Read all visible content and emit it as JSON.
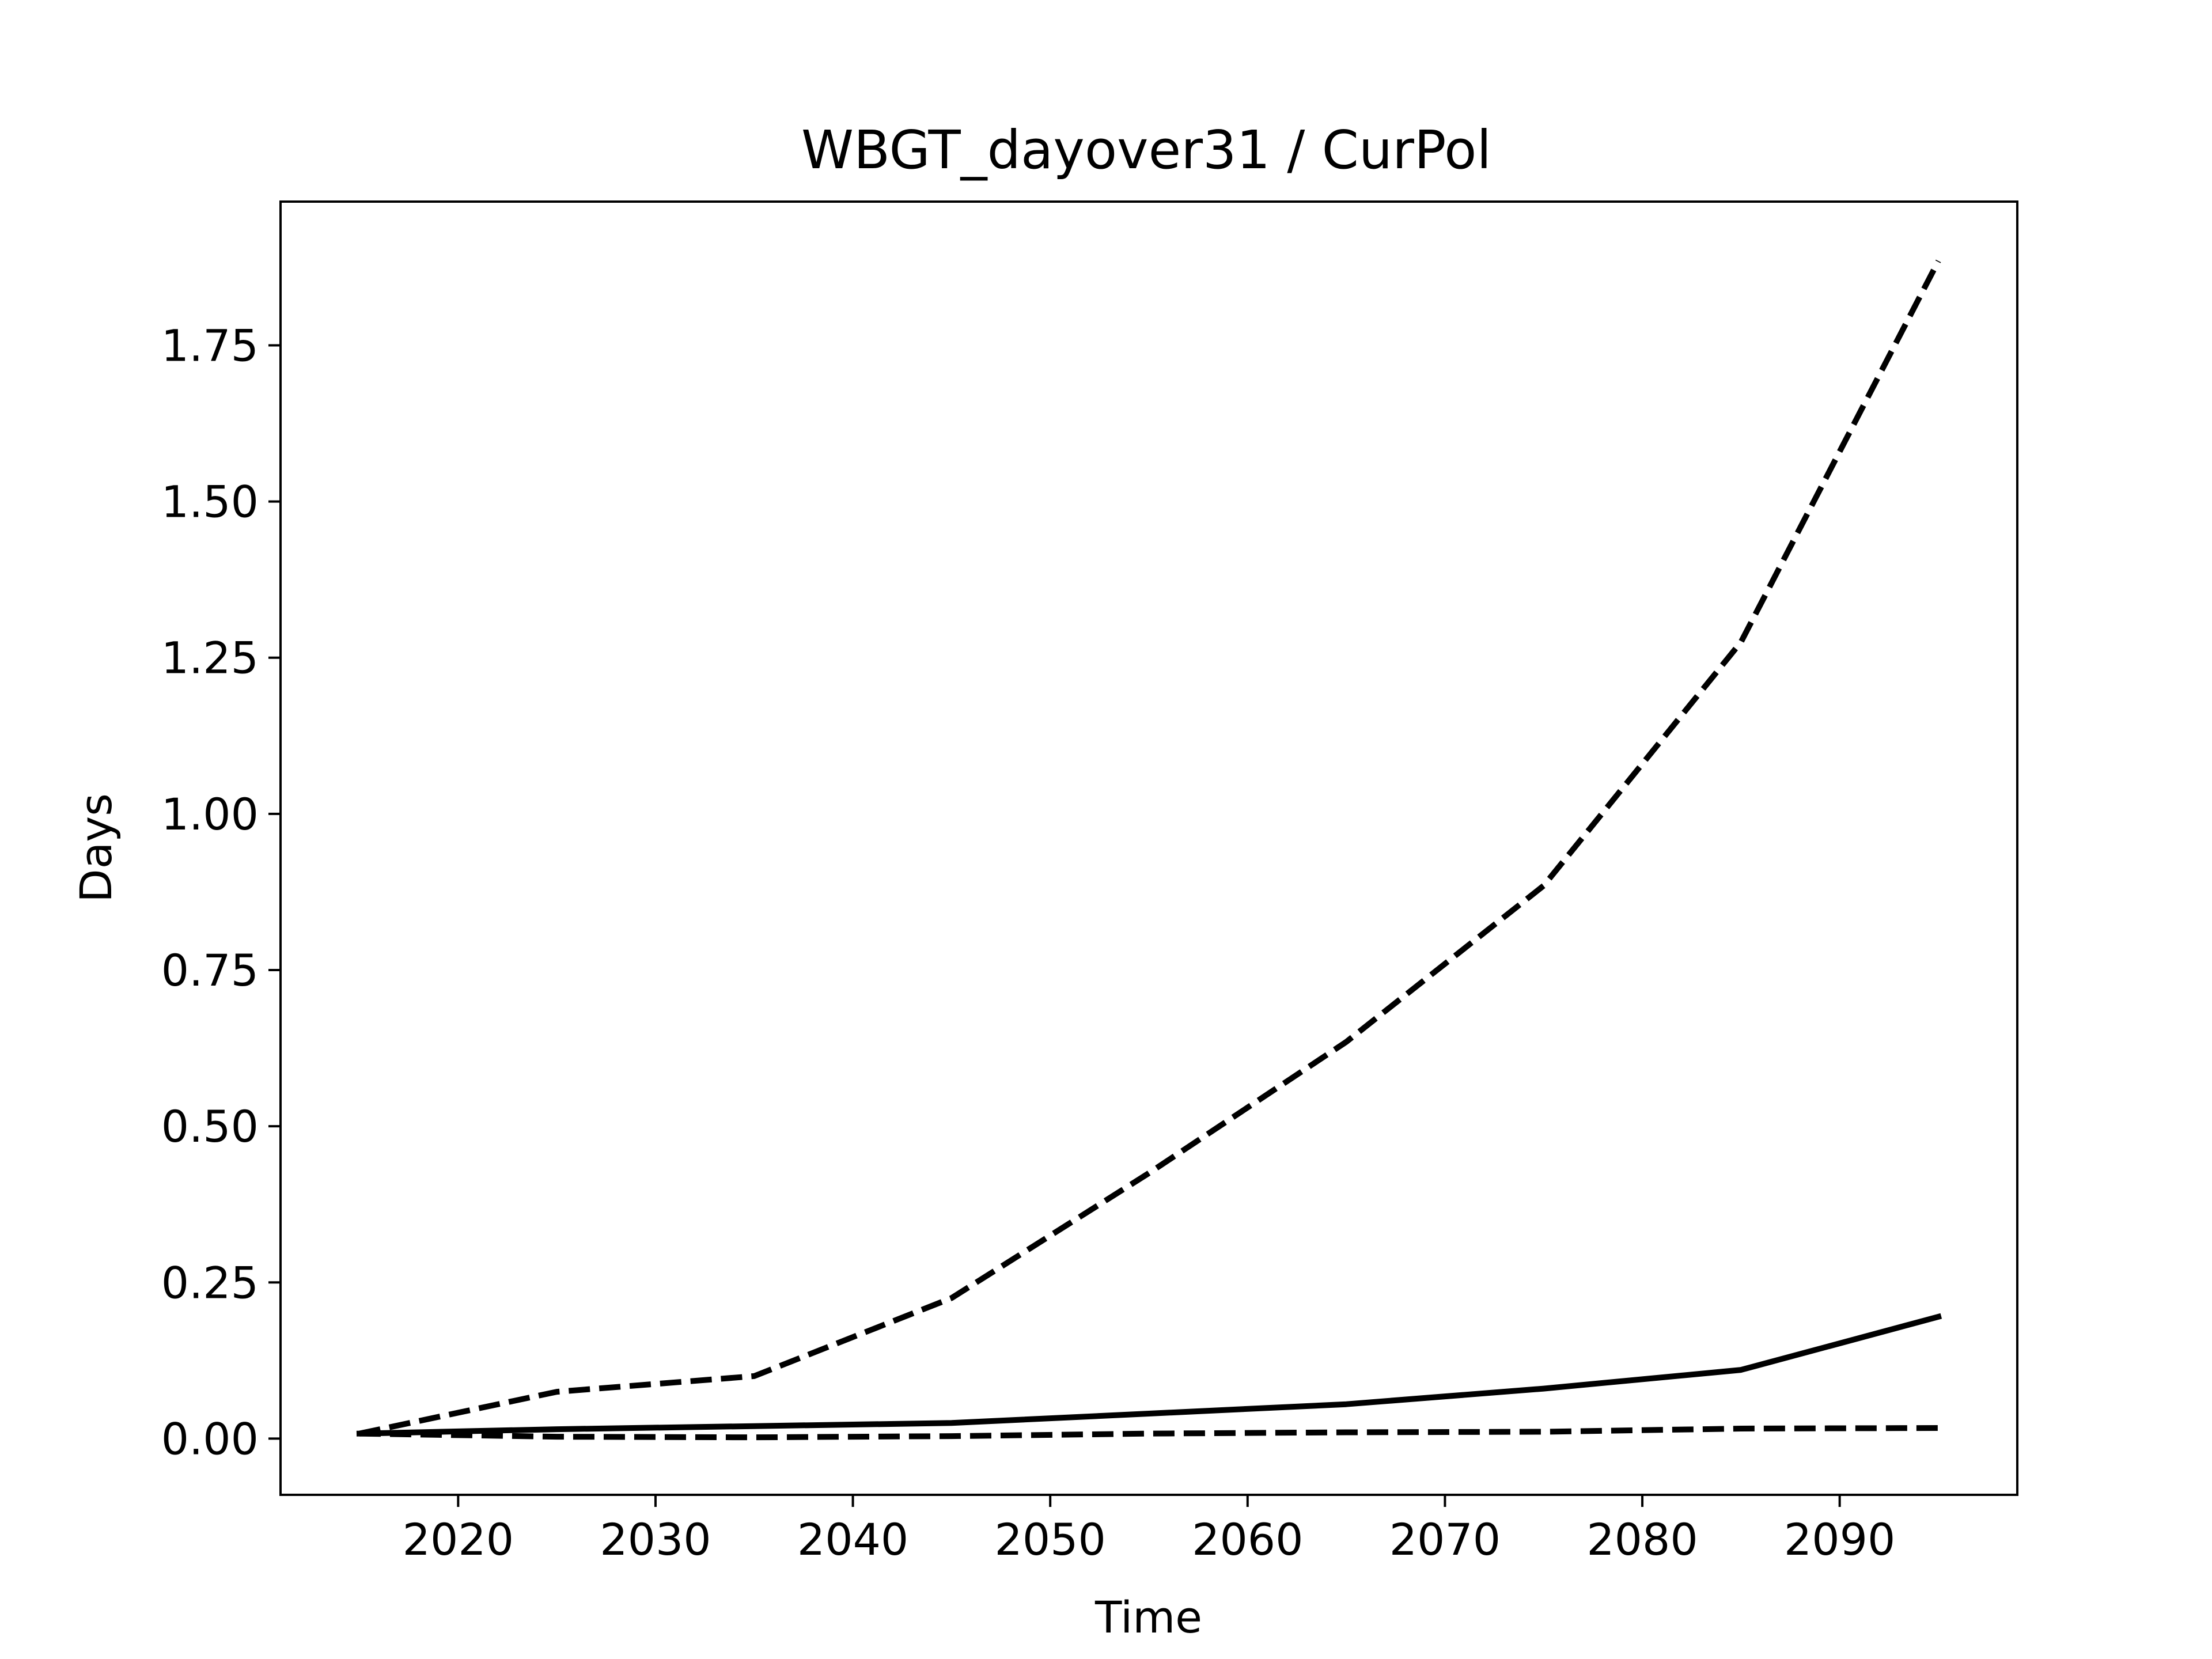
{
  "chart_data": {
    "type": "line",
    "title": "WBGT_dayover31 / CurPol",
    "xlabel": "Time",
    "ylabel": "Days",
    "xlim": [
      2011,
      2099
    ],
    "ylim": [
      -0.09,
      1.98
    ],
    "x_ticks": [
      2020,
      2030,
      2040,
      2050,
      2060,
      2070,
      2080,
      2090
    ],
    "y_ticks": [
      0.0,
      0.25,
      0.5,
      0.75,
      1.0,
      1.25,
      1.5,
      1.75
    ],
    "y_tick_labels": [
      "0.00",
      "0.25",
      "0.50",
      "0.75",
      "1.00",
      "1.25",
      "1.50",
      "1.75"
    ],
    "x_tick_labels": [
      "2020",
      "2030",
      "2040",
      "2050",
      "2060",
      "2070",
      "2080",
      "2090"
    ],
    "grid": false,
    "x": [
      2015,
      2025,
      2035,
      2045,
      2055,
      2065,
      2075,
      2085,
      2095
    ],
    "series": [
      {
        "style": "dashed",
        "color": "#000000",
        "values": [
          0.008,
          0.075,
          0.1,
          0.225,
          0.425,
          0.635,
          0.885,
          1.275,
          1.885
        ]
      },
      {
        "style": "solid",
        "color": "#000000",
        "values": [
          0.008,
          0.015,
          0.02,
          0.025,
          0.04,
          0.055,
          0.08,
          0.11,
          0.195
        ]
      },
      {
        "style": "dashed",
        "color": "#000000",
        "values": [
          0.008,
          0.003,
          0.002,
          0.004,
          0.008,
          0.01,
          0.011,
          0.016,
          0.017
        ]
      }
    ]
  }
}
